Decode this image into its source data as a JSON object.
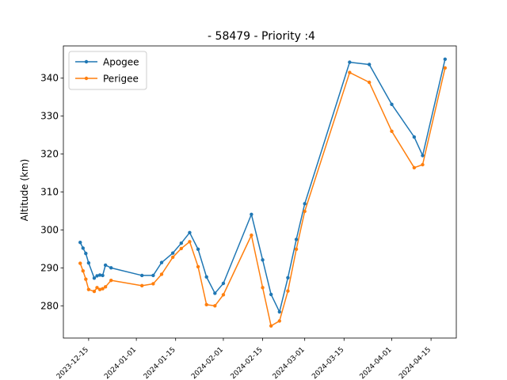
{
  "chart_data": {
    "type": "line",
    "title": "- 58479 - Priority :4",
    "xlabel": "",
    "ylabel": "Altitude (km)",
    "xlim": [
      "2023-12-06",
      "2024-04-24"
    ],
    "ylim": [
      271.5,
      348.5
    ],
    "yticks": [
      280,
      290,
      300,
      310,
      320,
      330,
      340
    ],
    "xticks": [
      "2023-12-15",
      "2024-01-01",
      "2024-01-15",
      "2024-02-01",
      "2024-02-15",
      "2024-03-01",
      "2024-03-15",
      "2024-04-01",
      "2024-04-15"
    ],
    "grid": false,
    "legend_position": "upper-left",
    "series": [
      {
        "name": "Apogee",
        "color": "#1f77b4",
        "points": [
          [
            "2023-12-12",
            296.7
          ],
          [
            "2023-12-13",
            295.2
          ],
          [
            "2023-12-14",
            293.8
          ],
          [
            "2023-12-15",
            291.3
          ],
          [
            "2023-12-17",
            287.3
          ],
          [
            "2023-12-18",
            287.9
          ],
          [
            "2023-12-19",
            288.1
          ],
          [
            "2023-12-20",
            288.0
          ],
          [
            "2023-12-21",
            290.7
          ],
          [
            "2023-12-23",
            290.0
          ],
          [
            "2024-01-03",
            288.0
          ],
          [
            "2024-01-07",
            288.0
          ],
          [
            "2024-01-10",
            291.4
          ],
          [
            "2024-01-14",
            293.9
          ],
          [
            "2024-01-17",
            296.5
          ],
          [
            "2024-01-20",
            299.3
          ],
          [
            "2024-01-23",
            294.9
          ],
          [
            "2024-01-26",
            287.6
          ],
          [
            "2024-01-29",
            283.3
          ],
          [
            "2024-02-01",
            285.9
          ],
          [
            "2024-02-11",
            304.1
          ],
          [
            "2024-02-15",
            292.1
          ],
          [
            "2024-02-18",
            283.0
          ],
          [
            "2024-02-21",
            278.4
          ],
          [
            "2024-02-24",
            287.4
          ],
          [
            "2024-02-27",
            297.5
          ],
          [
            "2024-03-01",
            306.9
          ],
          [
            "2024-03-17",
            344.2
          ],
          [
            "2024-03-24",
            343.6
          ],
          [
            "2024-04-01",
            333.1
          ],
          [
            "2024-04-09",
            324.5
          ],
          [
            "2024-04-12",
            319.6
          ],
          [
            "2024-04-20",
            345.0
          ]
        ]
      },
      {
        "name": "Perigee",
        "color": "#ff7f0e",
        "points": [
          [
            "2023-12-12",
            291.2
          ],
          [
            "2023-12-13",
            289.2
          ],
          [
            "2023-12-14",
            287.0
          ],
          [
            "2023-12-15",
            284.3
          ],
          [
            "2023-12-17",
            283.8
          ],
          [
            "2023-12-18",
            284.8
          ],
          [
            "2023-12-19",
            284.3
          ],
          [
            "2023-12-20",
            284.5
          ],
          [
            "2023-12-21",
            285.0
          ],
          [
            "2023-12-23",
            286.7
          ],
          [
            "2024-01-03",
            285.3
          ],
          [
            "2024-01-07",
            285.8
          ],
          [
            "2024-01-10",
            288.3
          ],
          [
            "2024-01-14",
            292.8
          ],
          [
            "2024-01-17",
            295.1
          ],
          [
            "2024-01-20",
            296.9
          ],
          [
            "2024-01-23",
            290.3
          ],
          [
            "2024-01-26",
            280.3
          ],
          [
            "2024-01-29",
            280.0
          ],
          [
            "2024-02-01",
            282.9
          ],
          [
            "2024-02-11",
            298.6
          ],
          [
            "2024-02-15",
            284.8
          ],
          [
            "2024-02-18",
            274.7
          ],
          [
            "2024-02-21",
            276.0
          ],
          [
            "2024-02-24",
            283.9
          ],
          [
            "2024-02-27",
            294.9
          ],
          [
            "2024-03-01",
            304.9
          ],
          [
            "2024-03-17",
            341.5
          ],
          [
            "2024-03-24",
            338.9
          ],
          [
            "2024-04-01",
            326.0
          ],
          [
            "2024-04-09",
            316.4
          ],
          [
            "2024-04-12",
            317.2
          ],
          [
            "2024-04-20",
            342.7
          ]
        ]
      }
    ]
  }
}
